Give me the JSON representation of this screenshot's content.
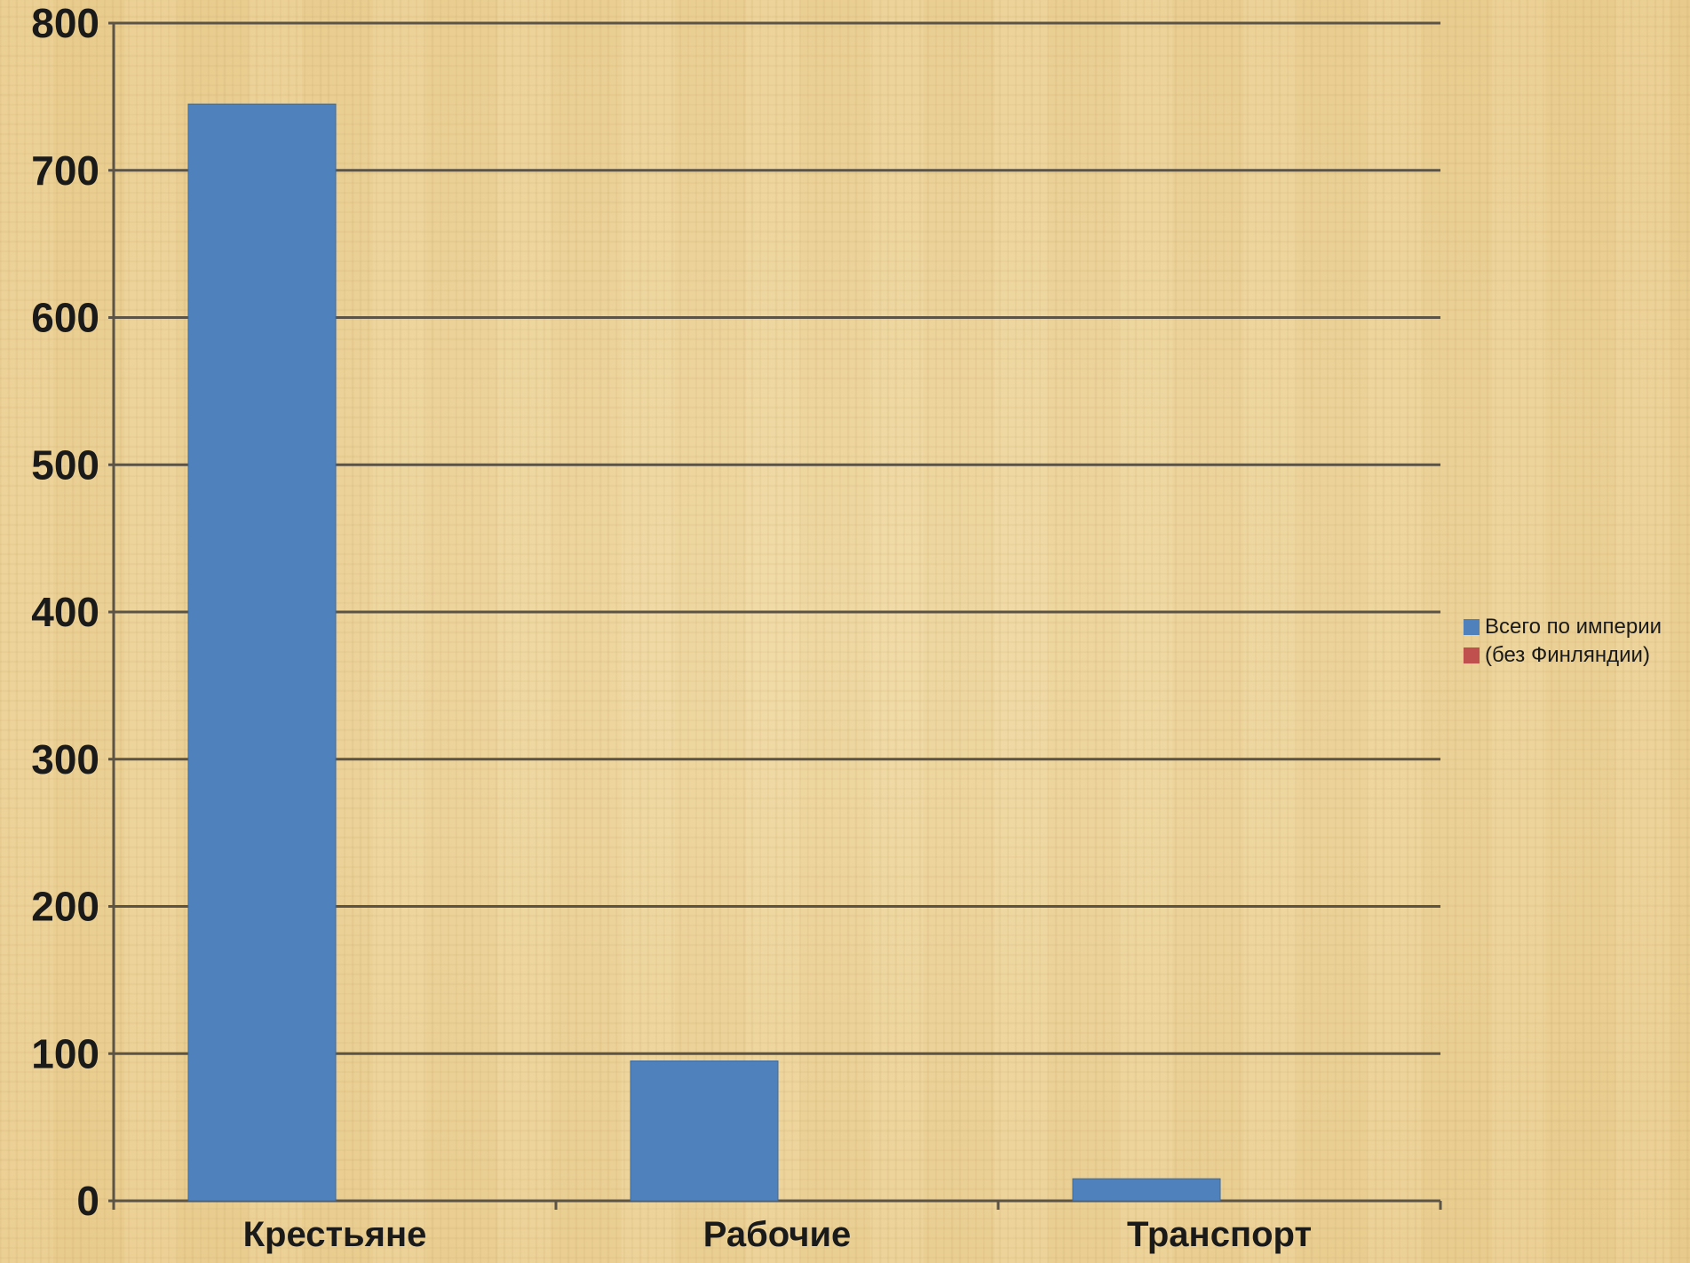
{
  "chart_data": {
    "type": "bar",
    "categories": [
      "Крестьяне",
      "Рабочие",
      "Транспорт"
    ],
    "series": [
      {
        "name": "Всего по империи",
        "values": [
          745,
          95,
          15
        ],
        "color": "#4f81bd"
      },
      {
        "name": "(без Финляндии)",
        "values": [
          null,
          null,
          null
        ],
        "color": "#c0504d"
      }
    ],
    "yticks": [
      0,
      100,
      200,
      300,
      400,
      500,
      600,
      700,
      800
    ],
    "ylim": [
      0,
      800
    ],
    "grid": true,
    "legend_position": "right",
    "title": "",
    "xlabel": "",
    "ylabel": ""
  }
}
